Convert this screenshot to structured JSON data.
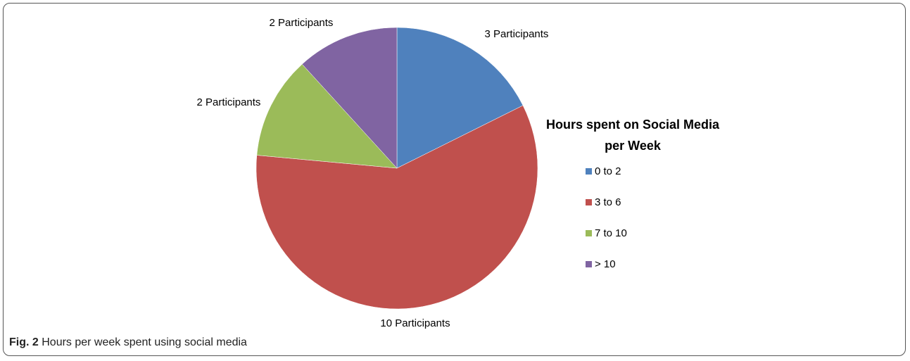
{
  "caption": {
    "label": "Fig. 2",
    "text": "Hours per week spent using social media"
  },
  "chart_data": {
    "type": "pie",
    "legend_title_lines": [
      "Hours spent on Social Media",
      "per Week"
    ],
    "legend_position": "right",
    "slices": [
      {
        "category": "0 to 2",
        "value": 3,
        "label": "3 Participants",
        "color": "#4F81BD"
      },
      {
        "category": "3 to 6",
        "value": 10,
        "label": "10 Participants",
        "color": "#C0504D"
      },
      {
        "category": "7 to 10",
        "value": 2,
        "label": "2 Participants",
        "color": "#9BBB59"
      },
      {
        "category": "> 10",
        "value": 2,
        "label": "2 Participants",
        "color": "#8064A2"
      }
    ]
  }
}
